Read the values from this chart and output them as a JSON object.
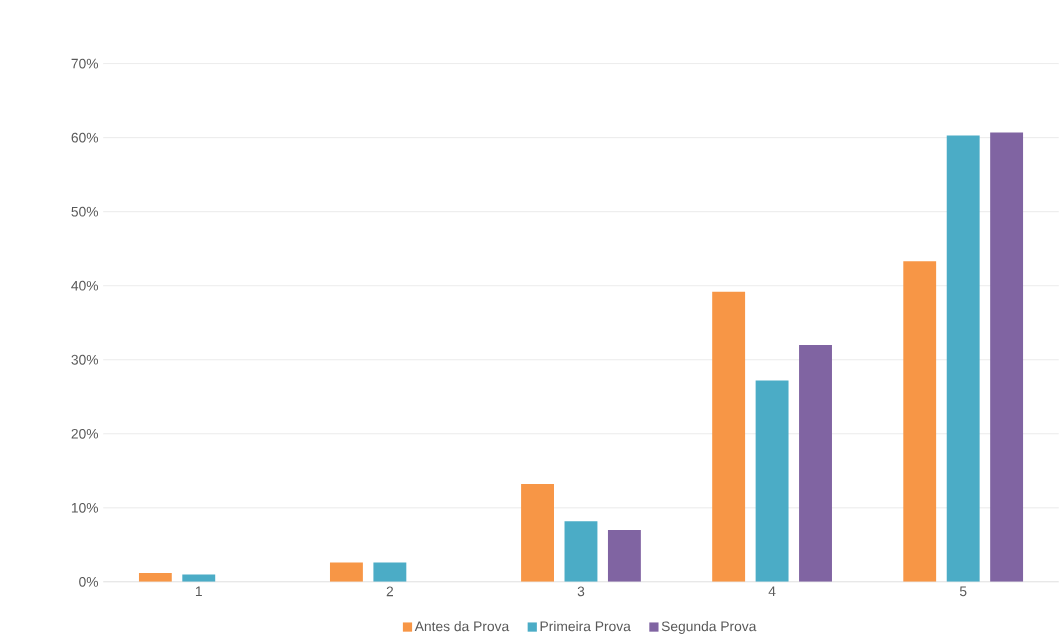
{
  "chart_data": {
    "type": "bar",
    "categories": [
      "1",
      "2",
      "3",
      "4",
      "5"
    ],
    "series": [
      {
        "name": "Antes da Prova",
        "color": "#f79646",
        "values": [
          1.2,
          2.6,
          13.2,
          39.2,
          43.3
        ]
      },
      {
        "name": "Primeira Prova",
        "color": "#4bacc6",
        "values": [
          1.0,
          2.6,
          8.2,
          27.2,
          60.3
        ]
      },
      {
        "name": "Segunda Prova",
        "color": "#8064a2",
        "values": [
          0,
          0,
          7.0,
          32.0,
          60.7
        ]
      }
    ],
    "ylim": [
      0,
      70
    ],
    "yticks": [
      {
        "value": 0,
        "label": "0%"
      },
      {
        "value": 10,
        "label": "10%"
      },
      {
        "value": 20,
        "label": "20%"
      },
      {
        "value": 30,
        "label": "30%"
      },
      {
        "value": 40,
        "label": "40%"
      },
      {
        "value": 50,
        "label": "50%"
      },
      {
        "value": 60,
        "label": "60%"
      },
      {
        "value": 70,
        "label": "70%"
      }
    ],
    "grid": "y",
    "legend": "bottom"
  }
}
